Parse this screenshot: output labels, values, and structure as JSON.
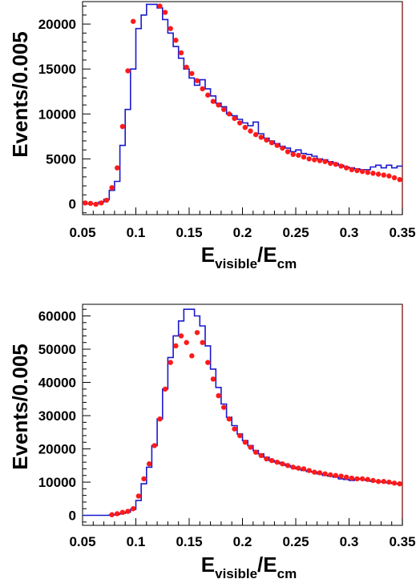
{
  "chart_data": [
    {
      "type": "line",
      "xlabel_main": "E",
      "xlabel_sub1": "visible",
      "xlabel_sep": "/E",
      "xlabel_sub2": "cm",
      "ylabel": "Events/0.005",
      "xlim": [
        0.05,
        0.35
      ],
      "ylim": [
        -1200,
        22500
      ],
      "xticks": [
        0.05,
        0.1,
        0.15,
        0.2,
        0.25,
        0.3,
        0.35
      ],
      "xtick_labels": [
        "0.05",
        "0.1",
        "0.15",
        "0.2",
        "0.25",
        "0.3",
        "0.35"
      ],
      "yticks": [
        0,
        5000,
        10000,
        15000,
        20000
      ],
      "ytick_labels": [
        "0",
        "5000",
        "10000",
        "15000",
        "20000"
      ],
      "grid": false,
      "series": [
        {
          "style": "step",
          "color": "#1a1acc",
          "bin_width": 0.005,
          "x": [
            0.05,
            0.055,
            0.06,
            0.065,
            0.07,
            0.075,
            0.08,
            0.085,
            0.09,
            0.095,
            0.1,
            0.105,
            0.11,
            0.115,
            0.12,
            0.125,
            0.13,
            0.135,
            0.14,
            0.145,
            0.15,
            0.155,
            0.16,
            0.165,
            0.17,
            0.175,
            0.18,
            0.185,
            0.19,
            0.195,
            0.2,
            0.205,
            0.21,
            0.215,
            0.22,
            0.225,
            0.23,
            0.235,
            0.24,
            0.245,
            0.25,
            0.255,
            0.26,
            0.265,
            0.27,
            0.275,
            0.28,
            0.285,
            0.29,
            0.295,
            0.3,
            0.305,
            0.31,
            0.315,
            0.32,
            0.325,
            0.33,
            0.335,
            0.34,
            0.345
          ],
          "y": [
            0,
            0,
            0,
            200,
            500,
            1500,
            2500,
            6500,
            10500,
            15000,
            19500,
            21000,
            22200,
            22200,
            21800,
            20500,
            19000,
            17500,
            16200,
            15000,
            14000,
            13200,
            13800,
            12800,
            12000,
            11200,
            10800,
            10000,
            9800,
            9400,
            9000,
            8700,
            9100,
            7800,
            7300,
            7000,
            6700,
            6400,
            6200,
            5800,
            6000,
            5600,
            5500,
            5300,
            5000,
            4900,
            4700,
            4500,
            4300,
            4100,
            4000,
            3900,
            3800,
            3800,
            4100,
            4300,
            4000,
            4300,
            4000,
            4200
          ]
        },
        {
          "style": "points",
          "color": "#ff1a1a",
          "x": [
            0.0525,
            0.0575,
            0.0625,
            0.0675,
            0.0725,
            0.0775,
            0.0825,
            0.0875,
            0.0925,
            0.0975,
            0.1225,
            0.1275,
            0.1325,
            0.1375,
            0.1425,
            0.1475,
            0.1525,
            0.1575,
            0.1625,
            0.1675,
            0.1725,
            0.1775,
            0.1825,
            0.1875,
            0.1925,
            0.1975,
            0.2025,
            0.2075,
            0.2125,
            0.2175,
            0.2225,
            0.2275,
            0.2325,
            0.2375,
            0.2425,
            0.2475,
            0.2525,
            0.2575,
            0.2625,
            0.2675,
            0.2725,
            0.2775,
            0.2825,
            0.2875,
            0.2925,
            0.2975,
            0.3025,
            0.3075,
            0.3125,
            0.3175,
            0.3225,
            0.3275,
            0.3325,
            0.3375,
            0.3425,
            0.3475
          ],
          "y": [
            100,
            50,
            -50,
            100,
            400,
            1800,
            4000,
            8600,
            14800,
            20300,
            22000,
            21300,
            19500,
            18200,
            16800,
            15200,
            14500,
            13700,
            12800,
            12100,
            11400,
            11000,
            10500,
            10000,
            9500,
            9000,
            8500,
            8100,
            7700,
            7400,
            7100,
            6800,
            6500,
            6200,
            5800,
            5500,
            5400,
            5200,
            5000,
            4900,
            4800,
            4700,
            4500,
            4400,
            4200,
            4000,
            3800,
            3700,
            3600,
            3500,
            3400,
            3300,
            3200,
            3100,
            2900,
            2700
          ]
        }
      ]
    },
    {
      "type": "line",
      "xlabel_main": "E",
      "xlabel_sub1": "visible",
      "xlabel_sep": "/E",
      "xlabel_sub2": "cm",
      "ylabel": "Events/0.005",
      "xlim": [
        0.05,
        0.35
      ],
      "ylim": [
        -3000,
        63500
      ],
      "xticks": [
        0.05,
        0.1,
        0.15,
        0.2,
        0.25,
        0.3,
        0.35
      ],
      "xtick_labels": [
        "0.05",
        "0.1",
        "0.15",
        "0.2",
        "0.25",
        "0.3",
        "0.35"
      ],
      "yticks": [
        0,
        10000,
        20000,
        30000,
        40000,
        50000,
        60000
      ],
      "ytick_labels": [
        "0",
        "10000",
        "20000",
        "30000",
        "40000",
        "50000",
        "60000"
      ],
      "grid": false,
      "series": [
        {
          "style": "step",
          "color": "#1a1acc",
          "bin_width": 0.005,
          "x": [
            0.05,
            0.055,
            0.06,
            0.065,
            0.07,
            0.075,
            0.08,
            0.085,
            0.09,
            0.095,
            0.1,
            0.105,
            0.11,
            0.115,
            0.12,
            0.125,
            0.13,
            0.135,
            0.14,
            0.145,
            0.15,
            0.155,
            0.16,
            0.165,
            0.17,
            0.175,
            0.18,
            0.185,
            0.19,
            0.195,
            0.2,
            0.205,
            0.21,
            0.215,
            0.22,
            0.225,
            0.23,
            0.235,
            0.24,
            0.245,
            0.25,
            0.255,
            0.26,
            0.265,
            0.27,
            0.275,
            0.28,
            0.285,
            0.29,
            0.295,
            0.3,
            0.305,
            0.31,
            0.315,
            0.32,
            0.325,
            0.33,
            0.335,
            0.34,
            0.345
          ],
          "y": [
            0,
            0,
            0,
            0,
            0,
            100,
            300,
            600,
            1000,
            1800,
            4500,
            9500,
            14500,
            21000,
            29000,
            38000,
            47500,
            54000,
            58500,
            62000,
            62000,
            60000,
            57000,
            51000,
            44000,
            38500,
            33500,
            29500,
            27000,
            24500,
            22500,
            21000,
            19500,
            18500,
            17500,
            16500,
            16000,
            15500,
            15000,
            14500,
            14000,
            13500,
            13200,
            13000,
            12500,
            12000,
            11800,
            11500,
            11000,
            10800,
            10500,
            11000,
            10800,
            10500,
            10200,
            10200,
            10000,
            9800,
            9600,
            9400
          ]
        },
        {
          "style": "points",
          "color": "#ff1a1a",
          "x": [
            0.0775,
            0.0825,
            0.0875,
            0.0925,
            0.0975,
            0.1025,
            0.1075,
            0.1125,
            0.1175,
            0.1225,
            0.1275,
            0.1325,
            0.1375,
            0.1425,
            0.1475,
            0.1525,
            0.1575,
            0.1625,
            0.1675,
            0.1725,
            0.1775,
            0.1825,
            0.1875,
            0.1925,
            0.1975,
            0.2025,
            0.2075,
            0.2125,
            0.2175,
            0.2225,
            0.2275,
            0.2325,
            0.2375,
            0.2425,
            0.2475,
            0.2525,
            0.2575,
            0.2625,
            0.2675,
            0.2725,
            0.2775,
            0.2825,
            0.2875,
            0.2925,
            0.2975,
            0.3025,
            0.3075,
            0.3125,
            0.3175,
            0.3225,
            0.3275,
            0.3325,
            0.3375,
            0.3425,
            0.3475
          ],
          "y": [
            200,
            500,
            900,
            1200,
            2000,
            5800,
            11000,
            15500,
            21000,
            29000,
            38000,
            46000,
            51000,
            54000,
            52000,
            48000,
            55000,
            52000,
            46000,
            41000,
            36000,
            32500,
            29000,
            26000,
            24000,
            22000,
            20500,
            19000,
            18000,
            17000,
            16500,
            16000,
            15500,
            15000,
            14500,
            14200,
            14000,
            13500,
            13000,
            12800,
            12500,
            12200,
            12000,
            11800,
            11500,
            11200,
            11000,
            11000,
            10800,
            10500,
            10200,
            10200,
            10000,
            9700,
            9500
          ]
        }
      ]
    }
  ]
}
